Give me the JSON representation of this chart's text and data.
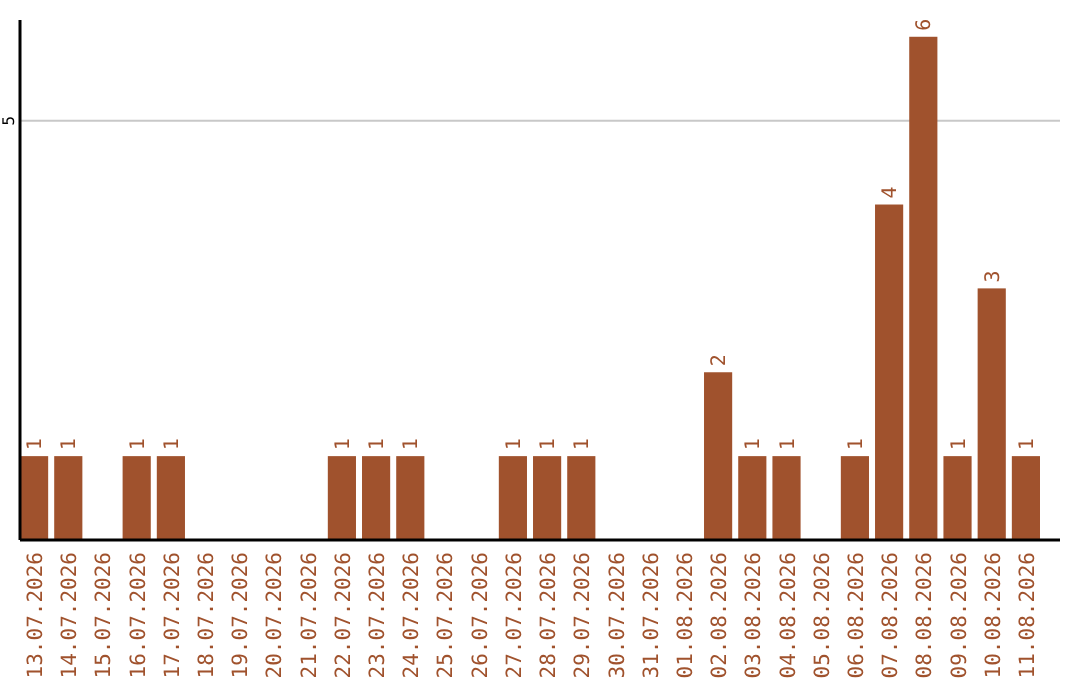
{
  "chart_data": {
    "type": "bar",
    "categories": [
      "13.07.2026",
      "14.07.2026",
      "15.07.2026",
      "16.07.2026",
      "17.07.2026",
      "18.07.2026",
      "19.07.2026",
      "20.07.2026",
      "21.07.2026",
      "22.07.2026",
      "23.07.2026",
      "24.07.2026",
      "25.07.2026",
      "26.07.2026",
      "27.07.2026",
      "28.07.2026",
      "29.07.2026",
      "30.07.2026",
      "31.07.2026",
      "01.08.2026",
      "02.08.2026",
      "03.08.2026",
      "04.08.2026",
      "05.08.2026",
      "06.08.2026",
      "07.08.2026",
      "08.08.2026",
      "09.08.2026",
      "10.08.2026",
      "11.08.2026"
    ],
    "values": [
      1,
      1,
      0,
      1,
      1,
      0,
      0,
      0,
      0,
      1,
      1,
      1,
      0,
      0,
      1,
      1,
      1,
      0,
      0,
      0,
      2,
      1,
      1,
      0,
      1,
      4,
      6,
      1,
      3,
      1
    ],
    "value_labels": [
      "1",
      "1",
      null,
      "1",
      "1",
      null,
      null,
      null,
      null,
      "1",
      "1",
      "1",
      null,
      null,
      "1",
      "1",
      "1",
      null,
      null,
      null,
      "2",
      "1",
      "1",
      null,
      "1",
      "4",
      "6",
      "1",
      "3",
      "1"
    ],
    "color": "#a0522d",
    "ylim": [
      0,
      6.2
    ],
    "yticks": [
      5
    ],
    "grid": "y"
  }
}
